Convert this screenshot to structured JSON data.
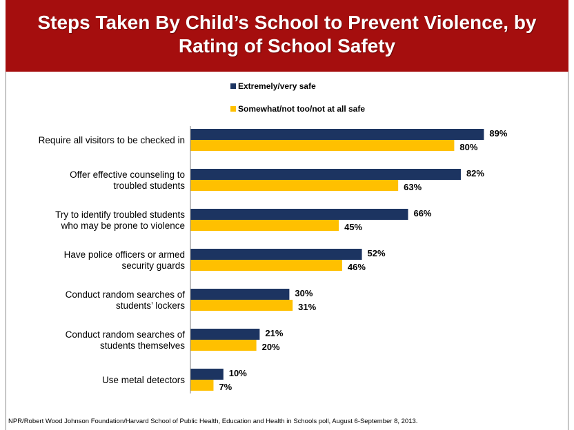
{
  "title": "Steps Taken By Child’s School to Prevent Violence, by Rating of School Safety",
  "colors": {
    "header_bg": "#a50e0e",
    "series1": "#1c3461",
    "series2": "#ffc000"
  },
  "legend": [
    {
      "label": "Extremely/very safe",
      "color": "#1c3461"
    },
    {
      "label": "Somewhat/not too/not at all safe",
      "color": "#ffc000"
    }
  ],
  "chart_data": {
    "type": "bar",
    "orientation": "horizontal",
    "title": "Steps Taken By Child’s School to Prevent Violence, by Rating of School Safety",
    "categories": [
      [
        "Require all visitors to be checked in"
      ],
      [
        "Offer effective counseling to",
        "troubled students"
      ],
      [
        "Try to identify troubled students",
        "who may be prone to violence"
      ],
      [
        "Have police officers or armed",
        "security guards"
      ],
      [
        "Conduct random searches of",
        "students’ lockers"
      ],
      [
        "Conduct random searches of",
        "students themselves"
      ],
      [
        "Use metal detectors"
      ]
    ],
    "series": [
      {
        "name": "Extremely/very safe",
        "values": [
          89,
          82,
          66,
          52,
          30,
          21,
          10
        ],
        "labels": [
          "89%",
          "82%",
          "66%",
          "52%",
          "30%",
          "21%",
          "10%"
        ]
      },
      {
        "name": "Somewhat/not too/not at all safe",
        "values": [
          80,
          63,
          45,
          46,
          31,
          20,
          7
        ],
        "labels": [
          "80%",
          "63%",
          "45%",
          "46%",
          "31%",
          "20%",
          "7%"
        ]
      }
    ],
    "xlim": [
      0,
      100
    ],
    "grid": false,
    "legend_position": "top-center"
  },
  "source": "NPR/Robert Wood Johnson Foundation/Harvard School of Public Health, Education and Health in Schools poll, August 6-September 8, 2013."
}
